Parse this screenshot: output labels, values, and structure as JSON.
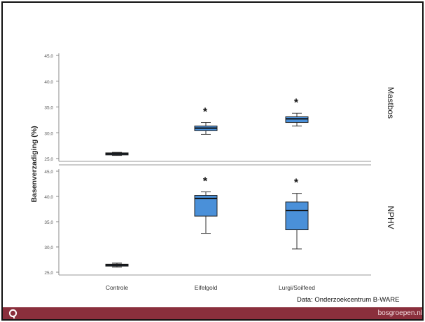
{
  "chart_data": {
    "type": "boxplot",
    "ylabel": "Basenverzadiging (%)",
    "categories": [
      "Controle",
      "Eifelgold",
      "Lurgi/Soilfeed"
    ],
    "panels": [
      {
        "name": "Mastbos",
        "ylim": [
          25,
          45
        ],
        "yticks": [
          "25,0",
          "30,0",
          "35,0",
          "40,0",
          "45,0"
        ],
        "boxes": [
          {
            "category": "Controle",
            "min": 25.6,
            "q1": 25.7,
            "median": 25.9,
            "q3": 26.1,
            "max": 26.2,
            "significant": false
          },
          {
            "category": "Eifelgold",
            "min": 29.7,
            "q1": 30.4,
            "median": 30.9,
            "q3": 31.3,
            "max": 32.0,
            "significant": true
          },
          {
            "category": "Lurgi/Soilfeed",
            "min": 31.3,
            "q1": 32.0,
            "median": 32.7,
            "q3": 33.1,
            "max": 33.8,
            "significant": true
          }
        ]
      },
      {
        "name": "NPHV",
        "ylim": [
          25,
          45
        ],
        "yticks": [
          "25,0",
          "30,0",
          "35,0",
          "40,0",
          "45,0"
        ],
        "boxes": [
          {
            "category": "Controle",
            "min": 26.0,
            "q1": 26.2,
            "median": 26.4,
            "q3": 26.6,
            "max": 26.8,
            "significant": false
          },
          {
            "category": "Eifelgold",
            "min": 32.7,
            "q1": 36.1,
            "median": 39.6,
            "q3": 40.2,
            "max": 40.9,
            "significant": true
          },
          {
            "category": "Lurgi/Soilfeed",
            "min": 29.6,
            "q1": 33.4,
            "median": 37.2,
            "q3": 38.9,
            "max": 40.6,
            "significant": true
          }
        ]
      }
    ],
    "significance_marker": "*",
    "colors": {
      "box": "#4a90d9",
      "outline": "#222222",
      "axis": "#555555"
    }
  },
  "source_text": "Data: Onderzoekcentrum B-WARE",
  "footer": {
    "site": "bosgroepen.nl",
    "logo_icon": "q-logo-icon",
    "color": "#8a2f3c"
  }
}
